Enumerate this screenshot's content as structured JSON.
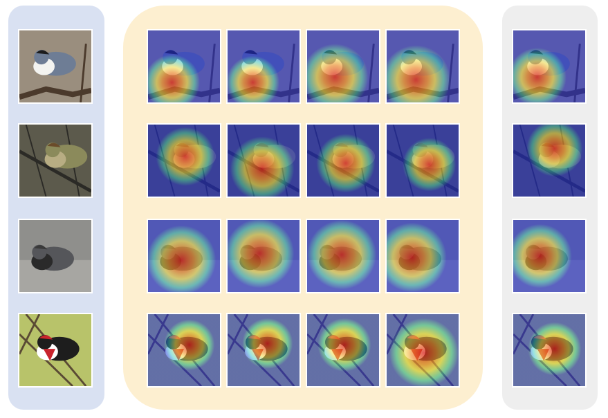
{
  "rows": [
    {
      "subject": "white-breasted-nuthatch",
      "colors": {
        "bg": "#9a8e7e",
        "bird": "#6e7d95",
        "accent": "#f3f3f0",
        "cap": "#1c1c1c",
        "branch": "#4b3a2c"
      }
    },
    {
      "subject": "olive-sparrow-on-branch",
      "colors": {
        "bg": "#5c5a4c",
        "bird": "#8b8a5b",
        "accent": "#b8ad83",
        "cap": "#6a4b2a",
        "branch": "#2b2a26"
      }
    },
    {
      "subject": "clarks-nutcracker-on-rock",
      "colors": {
        "bg": "#8f8f8c",
        "bird": "#55565a",
        "accent": "#2a2a2a",
        "cap": "#3a3a3a",
        "branch": "#b7b5b0"
      }
    },
    {
      "subject": "rose-breasted-grosbeak",
      "colors": {
        "bg": "#b8c36a",
        "bird": "#1d1d1d",
        "accent": "#ffffff",
        "cap": "#c8232c",
        "branch": "#5a4a34"
      }
    }
  ],
  "heatmap_colors": {
    "cold": "#1e2bd8",
    "mid": "#32c8c8",
    "warm": "#f5e14a",
    "hot": "#d9201c"
  }
}
